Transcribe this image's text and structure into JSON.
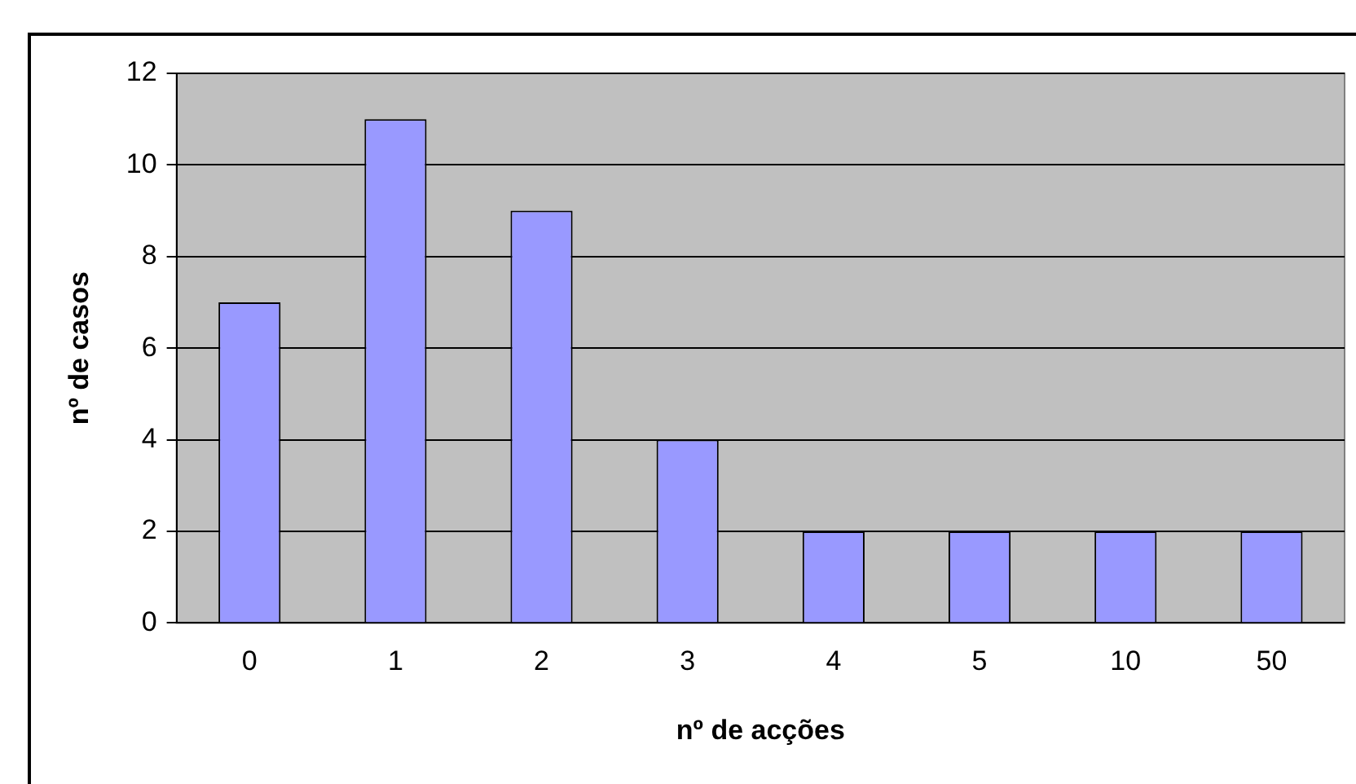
{
  "chart_data": {
    "type": "bar",
    "xlabel": "nº de acções",
    "ylabel": "nº de casos",
    "categories": [
      "0",
      "1",
      "2",
      "3",
      "4",
      "5",
      "10",
      "50"
    ],
    "values": [
      7,
      11,
      9,
      4,
      2,
      2,
      2,
      2
    ],
    "color": "#9999ff",
    "ylim": [
      0,
      12
    ],
    "yticks": [
      0,
      2,
      4,
      6,
      8,
      10,
      12
    ],
    "grid": "y",
    "legend": false
  }
}
